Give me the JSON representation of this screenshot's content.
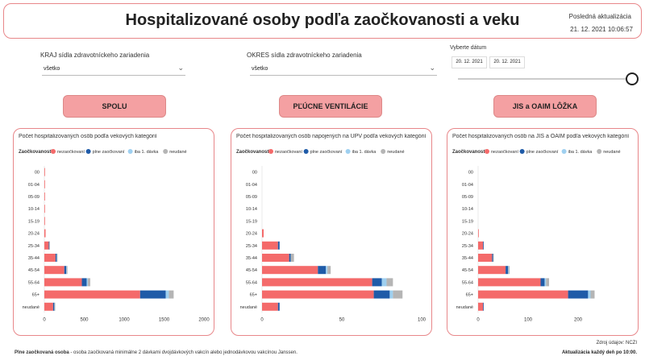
{
  "header": {
    "title": "Hospitalizované osoby podľa zaočkovanosti a veku",
    "last_update_label": "Posledná aktualizácia",
    "last_update_value": "21. 12. 2021 10:06:57"
  },
  "filters": {
    "kraj": {
      "label": "KRAJ sídla zdravotníckeho zariadenia",
      "value": "všetko"
    },
    "okres": {
      "label": "OKRES sídla zdravotníckeho zariadenia",
      "value": "všetko"
    },
    "date": {
      "label": "Vyberte dátum",
      "from": "20. 12. 2021",
      "to": "20. 12. 2021"
    }
  },
  "buttons": {
    "spolu": "SPOLU",
    "ventilacie": "PĽÚCNE VENTILÁCIE",
    "jis": "JIS a OAIM LÔŽKA"
  },
  "legend": {
    "title": "Zaočkovanosť",
    "items": [
      "nezaočkovaní",
      "plne zaočkovaní",
      "iba 1. dávka",
      "neudané"
    ]
  },
  "colors": {
    "nezaockovani": "#f46a6a",
    "plne": "#1f5ba8",
    "iba1": "#9fd0f0",
    "neudane": "#b5b5b5",
    "accent": "#e8878a"
  },
  "chart_data": [
    {
      "type": "bar",
      "orientation": "horizontal",
      "stacked": true,
      "title": "Počet hospitalizovaných osôb podľa vekových kategórií",
      "categories": [
        "00",
        "01-04",
        "05-09",
        "10-14",
        "15-19",
        "20-24",
        "25-34",
        "35-44",
        "45-54",
        "55-64",
        "65+",
        "neudané"
      ],
      "xlim": [
        0,
        2000
      ],
      "xticks": [
        0,
        500,
        1000,
        1500,
        2000
      ],
      "series": [
        {
          "name": "nezaočkovaní",
          "values": [
            5,
            8,
            5,
            5,
            8,
            15,
            55,
            140,
            250,
            470,
            1200,
            110
          ]
        },
        {
          "name": "plne zaočkovaní",
          "values": [
            0,
            0,
            0,
            0,
            0,
            0,
            5,
            15,
            25,
            60,
            320,
            15
          ]
        },
        {
          "name": "iba 1. dávka",
          "values": [
            0,
            0,
            0,
            0,
            0,
            0,
            2,
            3,
            5,
            15,
            40,
            3
          ]
        },
        {
          "name": "neudané",
          "values": [
            0,
            0,
            0,
            0,
            0,
            0,
            3,
            7,
            10,
            30,
            60,
            5
          ]
        }
      ]
    },
    {
      "type": "bar",
      "orientation": "horizontal",
      "stacked": true,
      "title": "Počet hospitalizovaných osôb napojených na UPV podľa vekových kategórií",
      "categories": [
        "00",
        "01-04",
        "05-09",
        "10-14",
        "15-19",
        "20-24",
        "25-34",
        "35-44",
        "45-54",
        "55-64",
        "65+",
        "neudané"
      ],
      "xlim": [
        0,
        100
      ],
      "xticks": [
        0,
        50,
        100
      ],
      "series": [
        {
          "name": "nezaočkovaní",
          "values": [
            0,
            0,
            0,
            0,
            0,
            1,
            10,
            17,
            35,
            69,
            70,
            10
          ]
        },
        {
          "name": "plne zaočkovaní",
          "values": [
            0,
            0,
            0,
            0,
            0,
            0,
            1,
            1,
            5,
            6,
            10,
            1
          ]
        },
        {
          "name": "iba 1. dávka",
          "values": [
            0,
            0,
            0,
            0,
            0,
            0,
            0,
            0,
            1,
            3,
            2,
            0
          ]
        },
        {
          "name": "neudané",
          "values": [
            0,
            0,
            0,
            0,
            0,
            0,
            0,
            2,
            2,
            4,
            6,
            0
          ]
        }
      ]
    },
    {
      "type": "bar",
      "orientation": "horizontal",
      "stacked": true,
      "title": "Počet hospitalizovaných osôb na JIS a OAIM podľa vekových kategórií",
      "categories": [
        "00",
        "01-04",
        "05-09",
        "10-14",
        "15-19",
        "20-24",
        "25-34",
        "35-44",
        "45-54",
        "55-64",
        "65+",
        "neudané"
      ],
      "xlim": [
        0,
        300
      ],
      "xticks": [
        0,
        100,
        200
      ],
      "series": [
        {
          "name": "nezaočkovaní",
          "values": [
            0,
            0,
            0,
            0,
            0,
            1,
            10,
            28,
            55,
            125,
            180,
            10
          ]
        },
        {
          "name": "plne zaočkovaní",
          "values": [
            0,
            0,
            0,
            0,
            0,
            0,
            1,
            2,
            5,
            8,
            40,
            1
          ]
        },
        {
          "name": "iba 1. dávka",
          "values": [
            0,
            0,
            0,
            0,
            0,
            0,
            0,
            0,
            1,
            3,
            5,
            0
          ]
        },
        {
          "name": "neudané",
          "values": [
            0,
            0,
            0,
            0,
            0,
            0,
            0,
            1,
            2,
            6,
            8,
            0
          ]
        }
      ]
    }
  ],
  "footer": {
    "source": "Zdroj údajov: NCZI",
    "note_bold": "Plne zaočkovaná osoba",
    "note_text": " - osoba zaočkovaná minimálne 2 dávkami dvojdávkových vakcín alebo jednodávkovou vakcínou Janssen.",
    "update_note": "Aktualizácia každý deň po 10:00."
  }
}
